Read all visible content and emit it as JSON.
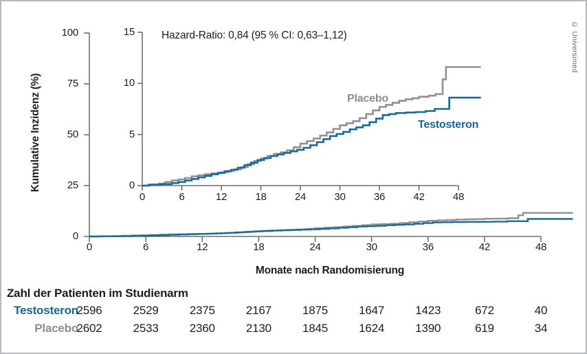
{
  "watermark": "© Universimed",
  "colors": {
    "testosteron": "#186a97",
    "placebo": "#909090",
    "axis": "#6d6f71",
    "text": "#1d1d1b"
  },
  "chart_data": {
    "type": "line",
    "subtype": "step-cumulative-incidence",
    "annotation": "Hazard-Ratio: 0,84 (95 % CI: 0,63–1,12)",
    "xlabel": "Monate nach Randomisierung",
    "ylabel": "Kumulative Inzidenz (%)",
    "x_ticks": [
      0,
      6,
      12,
      18,
      24,
      30,
      36,
      42,
      48
    ],
    "main_axis": {
      "ylim": [
        0,
        100
      ],
      "y_ticks": [
        0,
        25,
        50,
        75,
        100
      ],
      "xlim": [
        0,
        48
      ],
      "x_max_data": 51.4
    },
    "inset_axis": {
      "ylim": [
        0,
        15
      ],
      "y_ticks": [
        0,
        5,
        10,
        15
      ],
      "xlim": [
        0,
        48
      ],
      "x_max_data": 51.4
    },
    "series": [
      {
        "name": "Placebo",
        "color": "#909090",
        "points": [
          [
            0,
            0
          ],
          [
            1.5,
            0.1
          ],
          [
            2.5,
            0.2
          ],
          [
            3.5,
            0.35
          ],
          [
            4.5,
            0.5
          ],
          [
            5.5,
            0.6
          ],
          [
            6.5,
            0.75
          ],
          [
            7.5,
            0.9
          ],
          [
            8.5,
            1.0
          ],
          [
            9.5,
            1.1
          ],
          [
            10.5,
            1.2
          ],
          [
            12,
            1.3
          ],
          [
            13,
            1.45
          ],
          [
            14,
            1.6
          ],
          [
            15,
            1.8
          ],
          [
            16,
            2.1
          ],
          [
            17,
            2.4
          ],
          [
            18,
            2.65
          ],
          [
            19,
            2.9
          ],
          [
            20,
            3.1
          ],
          [
            21,
            3.25
          ],
          [
            22,
            3.45
          ],
          [
            23,
            3.75
          ],
          [
            24,
            4.1
          ],
          [
            25,
            4.35
          ],
          [
            26,
            4.6
          ],
          [
            27,
            4.9
          ],
          [
            28,
            5.2
          ],
          [
            29,
            5.55
          ],
          [
            30,
            5.9
          ],
          [
            31,
            6.1
          ],
          [
            32,
            6.3
          ],
          [
            33,
            6.6
          ],
          [
            34,
            7.0
          ],
          [
            35,
            7.35
          ],
          [
            36,
            7.7
          ],
          [
            37,
            7.9
          ],
          [
            38,
            8.1
          ],
          [
            39,
            8.3
          ],
          [
            40,
            8.45
          ],
          [
            41,
            8.55
          ],
          [
            42,
            8.7
          ],
          [
            43.5,
            8.8
          ],
          [
            44.5,
            8.95
          ],
          [
            45.6,
            10.4
          ],
          [
            46.1,
            11.6
          ],
          [
            51.4,
            11.6
          ]
        ]
      },
      {
        "name": "Testosteron",
        "color": "#186a97",
        "points": [
          [
            0,
            0
          ],
          [
            1,
            0.1
          ],
          [
            3,
            0.15
          ],
          [
            4.5,
            0.25
          ],
          [
            5.5,
            0.35
          ],
          [
            6.5,
            0.5
          ],
          [
            7.5,
            0.65
          ],
          [
            8.5,
            0.8
          ],
          [
            9.5,
            0.95
          ],
          [
            10.5,
            1.1
          ],
          [
            11.5,
            1.25
          ],
          [
            12.5,
            1.4
          ],
          [
            13.5,
            1.55
          ],
          [
            14.5,
            1.75
          ],
          [
            15.5,
            2.0
          ],
          [
            16.5,
            2.25
          ],
          [
            17.5,
            2.5
          ],
          [
            18.5,
            2.7
          ],
          [
            19.5,
            2.9
          ],
          [
            20.5,
            3.05
          ],
          [
            21.5,
            3.2
          ],
          [
            22.5,
            3.35
          ],
          [
            23.5,
            3.5
          ],
          [
            24.5,
            3.7
          ],
          [
            25.5,
            3.95
          ],
          [
            26.5,
            4.25
          ],
          [
            27.5,
            4.55
          ],
          [
            28.5,
            4.85
          ],
          [
            29.5,
            5.05
          ],
          [
            30.5,
            5.25
          ],
          [
            31.5,
            5.5
          ],
          [
            32.5,
            5.7
          ],
          [
            33.5,
            5.9
          ],
          [
            34.5,
            6.2
          ],
          [
            35.5,
            6.55
          ],
          [
            36.5,
            6.9
          ],
          [
            37.5,
            7.0
          ],
          [
            38.5,
            7.1
          ],
          [
            40,
            7.15
          ],
          [
            41.5,
            7.2
          ],
          [
            43,
            7.3
          ],
          [
            44.4,
            7.5
          ],
          [
            46.6,
            8.6
          ],
          [
            51.4,
            8.6
          ]
        ]
      }
    ],
    "risk_table": {
      "title": "Zahl der Patienten im Studienarm",
      "months": [
        0,
        6,
        12,
        18,
        24,
        30,
        36,
        42,
        48
      ],
      "rows": [
        {
          "name": "Testosteron",
          "color": "#17648d",
          "counts": [
            2596,
            2529,
            2375,
            2167,
            1875,
            1647,
            1423,
            672,
            40
          ]
        },
        {
          "name": "Placebo",
          "color": "#8d8d8d",
          "counts": [
            2602,
            2533,
            2360,
            2130,
            1845,
            1624,
            1390,
            619,
            34
          ]
        }
      ]
    }
  }
}
